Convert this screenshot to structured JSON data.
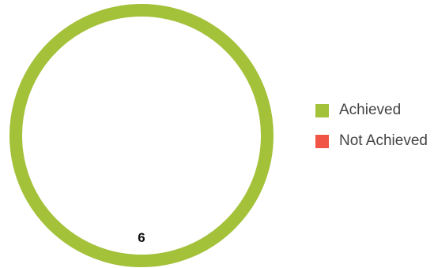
{
  "chart_data": {
    "type": "pie",
    "title": "",
    "categories": [
      "Achieved",
      "Not Achieved"
    ],
    "values": [
      6,
      0
    ],
    "colors": [
      "#a4c13a",
      "#f05545"
    ],
    "data_labels": [
      "6",
      ""
    ],
    "legend": {
      "position": "right",
      "items": [
        {
          "label": "Achieved",
          "color": "#a4c13a"
        },
        {
          "label": "Not Achieved",
          "color": "#f05545"
        }
      ]
    }
  }
}
